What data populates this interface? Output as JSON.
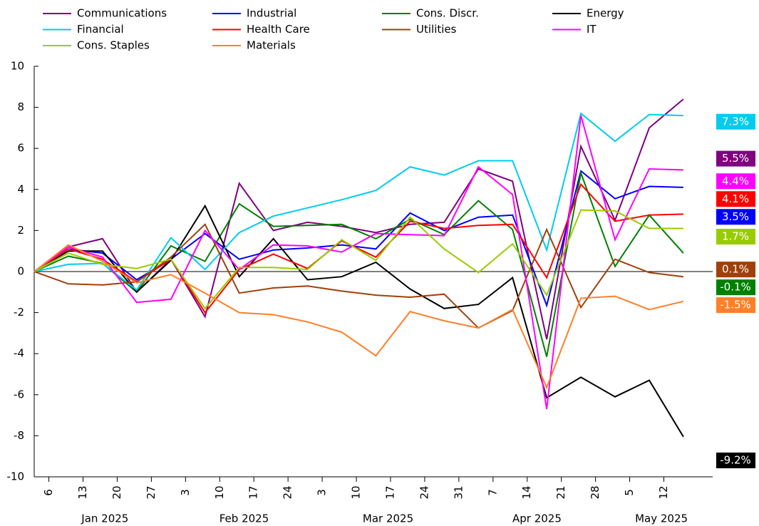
{
  "chart_data": {
    "type": "line",
    "x": [
      "2025-01-03",
      "2025-01-10",
      "2025-01-17",
      "2025-01-24",
      "2025-01-31",
      "2025-02-07",
      "2025-02-14",
      "2025-02-21",
      "2025-02-28",
      "2025-03-07",
      "2025-03-14",
      "2025-03-21",
      "2025-03-28",
      "2025-04-04",
      "2025-04-11",
      "2025-04-18",
      "2025-04-25",
      "2025-05-02",
      "2025-05-09",
      "2025-05-16"
    ],
    "xlim": [
      "2025-01-03",
      "2025-05-22"
    ],
    "xticks": [
      {
        "value": "2025-01-06",
        "label": "6"
      },
      {
        "value": "2025-01-13",
        "label": "13"
      },
      {
        "value": "2025-01-20",
        "label": "20"
      },
      {
        "value": "2025-01-27",
        "label": "27"
      },
      {
        "value": "2025-02-03",
        "label": "3"
      },
      {
        "value": "2025-02-10",
        "label": "10"
      },
      {
        "value": "2025-02-17",
        "label": "17"
      },
      {
        "value": "2025-02-24",
        "label": "24"
      },
      {
        "value": "2025-03-03",
        "label": "3"
      },
      {
        "value": "2025-03-10",
        "label": "10"
      },
      {
        "value": "2025-03-17",
        "label": "17"
      },
      {
        "value": "2025-03-24",
        "label": "24"
      },
      {
        "value": "2025-03-31",
        "label": "31"
      },
      {
        "value": "2025-04-07",
        "label": "7"
      },
      {
        "value": "2025-04-14",
        "label": "14"
      },
      {
        "value": "2025-04-21",
        "label": "21"
      },
      {
        "value": "2025-04-28",
        "label": "28"
      },
      {
        "value": "2025-05-05",
        "label": "5"
      },
      {
        "value": "2025-05-12",
        "label": "12"
      }
    ],
    "months": [
      {
        "value": "2025-01-01",
        "label": "Jan 2025"
      },
      {
        "value": "2025-02-01",
        "label": "Feb 2025"
      },
      {
        "value": "2025-03-01",
        "label": "Mar 2025"
      },
      {
        "value": "2025-04-01",
        "label": "Apr 2025"
      },
      {
        "value": "2025-05-01",
        "label": "May 2025"
      }
    ],
    "ylim": [
      -10,
      10
    ],
    "yticks": [
      -10,
      -8,
      -6,
      -4,
      -2,
      0,
      2,
      4,
      6,
      8,
      10
    ],
    "series": [
      {
        "name": "Communications",
        "color": "#800080",
        "values": [
          0,
          1.2,
          1.6,
          -1.0,
          0.6,
          -2.2,
          4.3,
          2.0,
          2.4,
          2.2,
          1.9,
          2.3,
          2.4,
          5.0,
          4.4,
          -3.3,
          6.1,
          2.5,
          7.0,
          8.4
        ],
        "last_value": 5.5,
        "last_label": "5.5%"
      },
      {
        "name": "Industrial",
        "color": "#0000ff",
        "values": [
          0,
          1.1,
          0.9,
          -0.4,
          0.6,
          1.85,
          0.6,
          1.05,
          1.15,
          1.3,
          1.1,
          2.85,
          2.0,
          2.65,
          2.75,
          -1.65,
          4.9,
          3.55,
          4.15,
          4.1
        ],
        "last_value": 3.5,
        "last_label": "3.5%"
      },
      {
        "name": "Cons. Discr.",
        "color": "#008000",
        "values": [
          0,
          0.75,
          0.4,
          -1.0,
          1.25,
          0.5,
          3.3,
          2.2,
          2.25,
          2.3,
          1.6,
          2.55,
          1.8,
          3.45,
          2.05,
          -4.15,
          4.8,
          0.25,
          2.75,
          0.9
        ],
        "last_value": -0.1,
        "last_label": "-0.1%"
      },
      {
        "name": "Energy",
        "color": "#000000",
        "values": [
          0,
          1.0,
          1.0,
          -1.0,
          0.55,
          3.2,
          -0.25,
          1.6,
          -0.4,
          -0.25,
          0.45,
          -0.85,
          -1.8,
          -1.6,
          -0.3,
          -6.15,
          -5.15,
          -6.1,
          -5.3,
          -8.05
        ],
        "last_value": -9.2,
        "last_label": "-9.2%"
      },
      {
        "name": "Financial",
        "color": "#00ccee",
        "values": [
          0,
          0.35,
          0.4,
          -0.9,
          1.65,
          0.1,
          1.9,
          2.7,
          3.1,
          3.5,
          3.95,
          5.1,
          4.7,
          5.4,
          5.4,
          1.05,
          7.7,
          6.35,
          7.65,
          7.6
        ],
        "last_value": 7.3,
        "last_label": "7.3%"
      },
      {
        "name": "Health Care",
        "color": "#ff0000",
        "values": [
          0,
          1.1,
          0.6,
          -0.5,
          0.6,
          -2.0,
          0.1,
          0.85,
          0.15,
          1.5,
          0.7,
          2.45,
          2.1,
          2.25,
          2.3,
          -0.3,
          4.25,
          2.45,
          2.75,
          2.8
        ],
        "last_value": 4.1,
        "last_label": "4.1%"
      },
      {
        "name": "Utilities",
        "color": "#a0400a",
        "values": [
          0,
          -0.6,
          -0.65,
          -0.5,
          0.7,
          2.3,
          -1.05,
          -0.8,
          -0.7,
          -0.95,
          -1.15,
          -1.25,
          -1.1,
          -2.75,
          -1.9,
          2.05,
          -1.75,
          0.6,
          -0.05,
          -0.25
        ],
        "last_value": 0.1,
        "last_label": "0.1%"
      },
      {
        "name": "IT",
        "color": "#ff00ff",
        "values": [
          0,
          1.2,
          0.7,
          -1.5,
          -1.35,
          2.0,
          0.1,
          1.3,
          1.25,
          0.95,
          1.85,
          1.8,
          1.75,
          5.1,
          3.75,
          -6.7,
          7.6,
          1.55,
          5.0,
          4.95
        ],
        "last_value": 4.4,
        "last_label": "4.4%"
      },
      {
        "name": "Cons. Staples",
        "color": "#99cc00",
        "values": [
          0,
          0.9,
          0.35,
          0.15,
          0.6,
          -1.8,
          0.2,
          0.2,
          0.1,
          1.55,
          0.55,
          2.65,
          1.1,
          -0.05,
          1.35,
          -1.15,
          3.0,
          2.95,
          2.1,
          2.1
        ],
        "last_value": 1.7,
        "last_label": "1.7%"
      },
      {
        "name": "Materials",
        "color": "#ff7f27",
        "values": [
          0,
          1.3,
          0.5,
          -0.55,
          -0.15,
          -1.05,
          -2.0,
          -2.1,
          -2.45,
          -2.95,
          -4.1,
          -1.95,
          -2.4,
          -2.75,
          -1.85,
          -5.65,
          -1.3,
          -1.2,
          -1.85,
          -1.45
        ],
        "last_value": -1.5,
        "last_label": "-1.5%"
      }
    ]
  }
}
